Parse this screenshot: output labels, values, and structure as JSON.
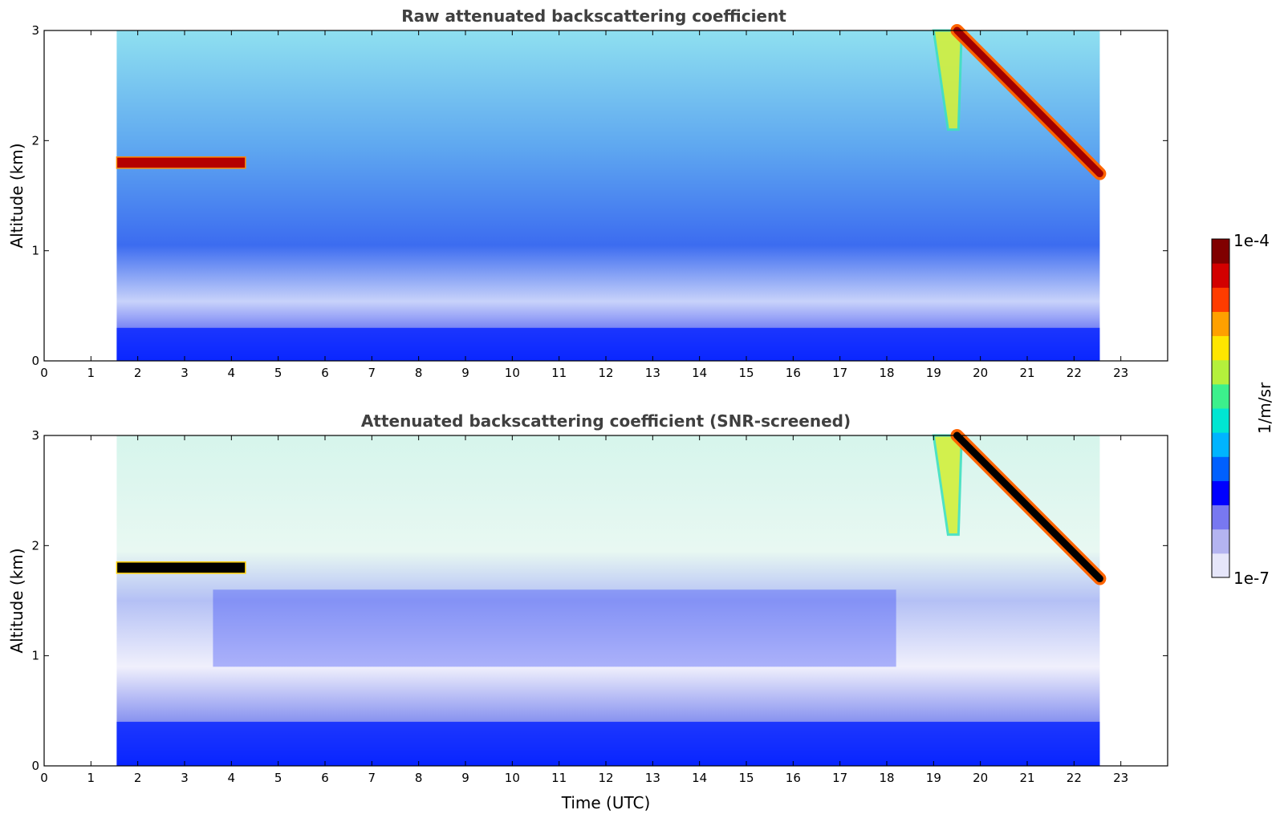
{
  "chart_data": [
    {
      "type": "heatmap",
      "title": "Raw attenuated backscattering coefficient",
      "xlabel": "",
      "ylabel": "Altitude (km)",
      "xlim": [
        0,
        24
      ],
      "ylim": [
        0,
        3
      ],
      "x_ticks": [
        "0",
        "1",
        "2",
        "3",
        "4",
        "5",
        "6",
        "7",
        "8",
        "9",
        "10",
        "11",
        "12",
        "13",
        "14",
        "15",
        "16",
        "17",
        "18",
        "19",
        "20",
        "21",
        "22",
        "23"
      ],
      "y_ticks": [
        "0",
        "1",
        "2",
        "3"
      ],
      "data_time_range": [
        1.55,
        22.55
      ],
      "color_scale": "log",
      "features": {
        "surface_layer_top_km": 0.3,
        "early_cloud": {
          "time": [
            1.55,
            4.3
          ],
          "altitude_km": 1.8
        },
        "evening_cloud": {
          "start_time": 19.5,
          "start_altitude_km": 3.0,
          "end_time": 22.55,
          "end_altitude_km": 1.7
        },
        "virga": {
          "time": [
            19.0,
            19.6
          ],
          "altitude_km": [
            2.1,
            3.0
          ]
        }
      },
      "grid": false,
      "legend": "none"
    },
    {
      "type": "heatmap",
      "title": "Attenuated backscattering coefficient (SNR-screened)",
      "xlabel": "Time (UTC)",
      "ylabel": "Altitude (km)",
      "xlim": [
        0,
        24
      ],
      "ylim": [
        0,
        3
      ],
      "x_ticks": [
        "0",
        "1",
        "2",
        "3",
        "4",
        "5",
        "6",
        "7",
        "8",
        "9",
        "10",
        "11",
        "12",
        "13",
        "14",
        "15",
        "16",
        "17",
        "18",
        "19",
        "20",
        "21",
        "22",
        "23"
      ],
      "y_ticks": [
        "0",
        "1",
        "2",
        "3"
      ],
      "data_time_range": [
        1.55,
        22.55
      ],
      "color_scale": "log",
      "features": {
        "surface_layer_top_km": 0.4,
        "aerosol_layer_top_km": 1.6,
        "early_cloud": {
          "time": [
            1.55,
            4.3
          ],
          "altitude_km": 1.8
        },
        "evening_cloud": {
          "start_time": 19.5,
          "start_altitude_km": 3.0,
          "end_time": 22.55,
          "end_altitude_km": 1.7
        },
        "virga": {
          "time": [
            19.0,
            19.6
          ],
          "altitude_km": [
            2.1,
            3.0
          ]
        }
      },
      "grid": false,
      "legend": "none"
    }
  ],
  "colorbar": {
    "label": "1/m/sr",
    "min_label": "1e-7",
    "max_label": "1e-4",
    "min": 1e-07,
    "max": 0.0001,
    "scale": "log",
    "colormap": [
      "#e6e6fa",
      "#b4b4f0",
      "#7878f0",
      "#0000ff",
      "#0060ff",
      "#00b4ff",
      "#00e6d2",
      "#3cf08c",
      "#b4f03c",
      "#ffe600",
      "#ffa000",
      "#ff3c00",
      "#d20000",
      "#800000"
    ]
  }
}
